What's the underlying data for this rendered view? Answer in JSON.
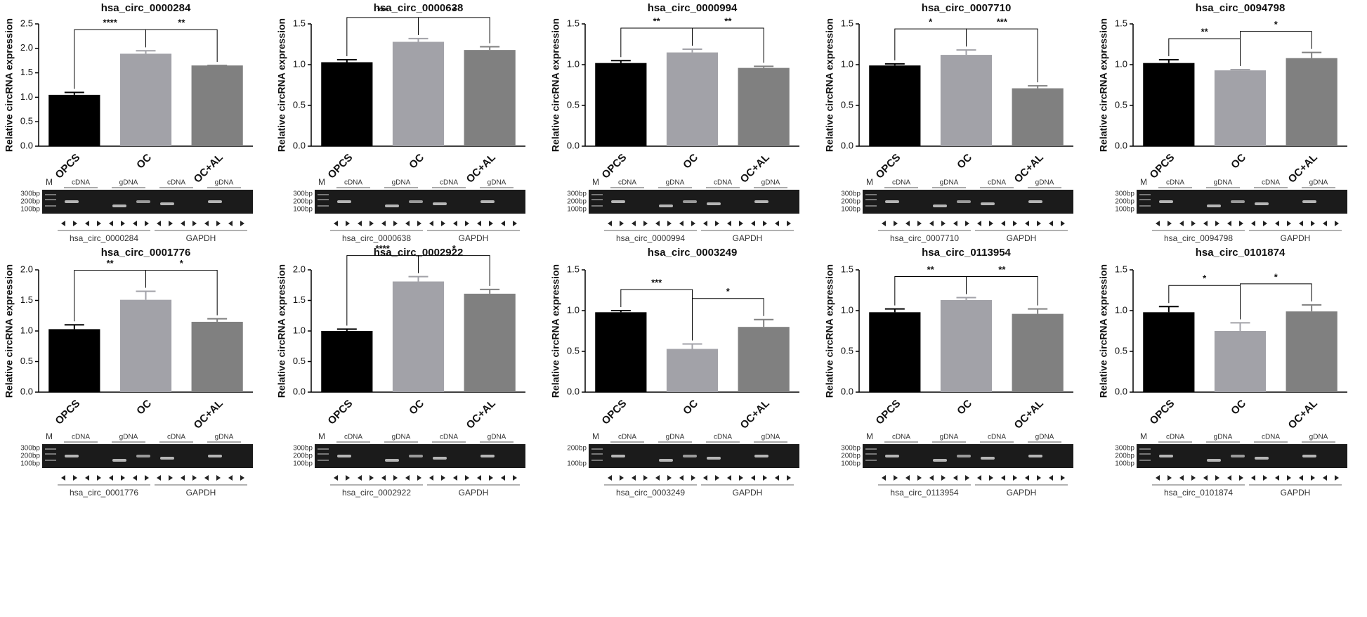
{
  "chart_data": [
    {
      "type": "bar",
      "title": "hsa_circ_0000284",
      "y_label": "Relative circRNA expression",
      "categories": [
        "OPCS",
        "OC",
        "OC+AL"
      ],
      "values": [
        1.05,
        1.89,
        1.65
      ],
      "errors": [
        0.05,
        0.06,
        0
      ],
      "colors": [
        "#000000",
        "#a2a2a8",
        "#808080"
      ],
      "ylim": [
        0,
        2.5
      ],
      "yticks": [
        {
          "value": 0,
          "label": "0.0"
        },
        0.5,
        {
          "value": 1,
          "label": "1.0"
        },
        1.5,
        {
          "value": 2,
          "label": "2.0"
        },
        2.5
      ],
      "significance": [
        "****",
        "**"
      ],
      "gel": {
        "marker": "M",
        "ladder": [
          "300bp",
          "200bp",
          "100bp"
        ],
        "lanes": [
          "cDNA",
          "gDNA",
          "cDNA",
          "gDNA"
        ],
        "groups": [
          "hsa_circ_0000284",
          "GAPDH"
        ]
      }
    },
    {
      "type": "bar",
      "title": "hsa_circ_0000638",
      "y_label": "Relative circRNA expression",
      "categories": [
        "OPCS",
        "OC",
        "OC+AL"
      ],
      "values": [
        1.03,
        1.28,
        1.18
      ],
      "errors": [
        0.03,
        0.04,
        0.04
      ],
      "colors": [
        "#000000",
        "#a2a2a8",
        "#808080"
      ],
      "ylim": [
        0,
        1.5
      ],
      "yticks": [
        {
          "value": 0,
          "label": "0.0"
        },
        0.5,
        {
          "value": 1,
          "label": "1.0"
        },
        1.5
      ],
      "significance": [
        "***",
        "*"
      ],
      "gel": {
        "marker": "M",
        "ladder": [
          "300bp",
          "200bp",
          "100bp"
        ],
        "lanes": [
          "cDNA",
          "gDNA",
          "cDNA",
          "gDNA"
        ],
        "groups": [
          "hsa_circ_0000638",
          "GAPDH"
        ]
      }
    },
    {
      "type": "bar",
      "title": "hsa_circ_0000994",
      "y_label": "Relative circRNA expression",
      "categories": [
        "OPCS",
        "OC",
        "OC+AL"
      ],
      "values": [
        1.02,
        1.15,
        0.96
      ],
      "errors": [
        0.03,
        0.04,
        0.02
      ],
      "colors": [
        "#000000",
        "#a2a2a8",
        "#808080"
      ],
      "ylim": [
        0,
        1.5
      ],
      "yticks": [
        {
          "value": 0,
          "label": "0.0"
        },
        0.5,
        {
          "value": 1,
          "label": "1.0"
        },
        1.5
      ],
      "significance": [
        "**",
        "**"
      ],
      "gel": {
        "marker": "M",
        "ladder": [
          "300bp",
          "200bp",
          "100bp"
        ],
        "lanes": [
          "cDNA",
          "gDNA",
          "cDNA",
          "gDNA"
        ],
        "groups": [
          "hsa_circ_0000994",
          "GAPDH"
        ]
      }
    },
    {
      "type": "bar",
      "title": "hsa_circ_0007710",
      "y_label": "Relative circRNA expression",
      "categories": [
        "OPCS",
        "OC",
        "OC+AL"
      ],
      "values": [
        0.99,
        1.12,
        0.71
      ],
      "errors": [
        0.02,
        0.06,
        0.03
      ],
      "colors": [
        "#000000",
        "#a2a2a8",
        "#808080"
      ],
      "ylim": [
        0,
        1.5
      ],
      "yticks": [
        {
          "value": 0,
          "label": "0.0"
        },
        0.5,
        {
          "value": 1,
          "label": "1.0"
        },
        1.5
      ],
      "significance": [
        "*",
        "***"
      ],
      "gel": {
        "marker": "M",
        "ladder": [
          "300bp",
          "200bp",
          "100bp"
        ],
        "lanes": [
          "cDNA",
          "gDNA",
          "cDNA",
          "gDNA"
        ],
        "groups": [
          "hsa_circ_0007710",
          "GAPDH"
        ]
      }
    },
    {
      "type": "bar",
      "title": "hsa_circ_0094798",
      "y_label": "Relative circRNA expression",
      "categories": [
        "OPCS",
        "OC",
        "OC+AL"
      ],
      "values": [
        1.02,
        0.93,
        1.08
      ],
      "errors": [
        0.04,
        0.01,
        0.07
      ],
      "colors": [
        "#000000",
        "#a2a2a8",
        "#808080"
      ],
      "ylim": [
        0,
        1.5
      ],
      "yticks": [
        {
          "value": 0,
          "label": "0.0"
        },
        0.5,
        {
          "value": 1,
          "label": "1.0"
        },
        1.5
      ],
      "significance": [
        "**",
        "*"
      ],
      "gel": {
        "marker": "M",
        "ladder": [
          "300bp",
          "200bp",
          "100bp"
        ],
        "lanes": [
          "cDNA",
          "gDNA",
          "cDNA",
          "gDNA"
        ],
        "groups": [
          "hsa_circ_0094798",
          "GAPDH"
        ]
      }
    },
    {
      "type": "bar",
      "title": "hsa_circ_0001776",
      "y_label": "Relative circRNA expression",
      "categories": [
        "OPCS",
        "OC",
        "OC+AL"
      ],
      "values": [
        1.03,
        1.51,
        1.15
      ],
      "errors": [
        0.07,
        0.14,
        0.05
      ],
      "colors": [
        "#000000",
        "#a2a2a8",
        "#808080"
      ],
      "ylim": [
        0,
        2
      ],
      "yticks": [
        {
          "value": 0,
          "label": "0.0"
        },
        0.5,
        {
          "value": 1,
          "label": "1.0"
        },
        1.5,
        {
          "value": 2,
          "label": "2.0"
        }
      ],
      "significance": [
        "**",
        "*"
      ],
      "gel": {
        "marker": "M",
        "ladder": [
          "300bp",
          "200bp",
          "100bp"
        ],
        "lanes": [
          "cDNA",
          "gDNA",
          "cDNA",
          "gDNA"
        ],
        "groups": [
          "hsa_circ_0001776",
          "GAPDH"
        ]
      }
    },
    {
      "type": "bar",
      "title": "hsa_circ_0002922",
      "y_label": "Relative circRNA expression",
      "categories": [
        "OPCS",
        "OC",
        "OC+AL"
      ],
      "values": [
        1.0,
        1.81,
        1.61
      ],
      "errors": [
        0.03,
        0.08,
        0.07
      ],
      "colors": [
        "#000000",
        "#a2a2a8",
        "#808080"
      ],
      "ylim": [
        0,
        2
      ],
      "yticks": [
        {
          "value": 0,
          "label": "0.0"
        },
        0.5,
        {
          "value": 1,
          "label": "1.0"
        },
        1.5,
        {
          "value": 2,
          "label": "2.0"
        }
      ],
      "significance": [
        "****",
        "*"
      ],
      "gel": {
        "marker": "M",
        "ladder": [
          "300bp",
          "200bp",
          "100bp"
        ],
        "lanes": [
          "cDNA",
          "gDNA",
          "cDNA",
          "gDNA"
        ],
        "groups": [
          "hsa_circ_0002922",
          "GAPDH"
        ]
      }
    },
    {
      "type": "bar",
      "title": "hsa_circ_0003249",
      "y_label": "Relative circRNA expression",
      "categories": [
        "OPCS",
        "OC",
        "OC+AL"
      ],
      "values": [
        0.98,
        0.53,
        0.8
      ],
      "errors": [
        0.02,
        0.06,
        0.09
      ],
      "colors": [
        "#000000",
        "#a2a2a8",
        "#808080"
      ],
      "ylim": [
        0,
        1.5
      ],
      "yticks": [
        {
          "value": 0,
          "label": "0.0"
        },
        0.5,
        {
          "value": 1,
          "label": "1.0"
        },
        1.5
      ],
      "significance": [
        "***",
        "*"
      ],
      "gel": {
        "marker": "M",
        "ladder": [
          "200bp",
          "100bp"
        ],
        "lanes": [
          "cDNA",
          "gDNA",
          "cDNA",
          "gDNA"
        ],
        "groups": [
          "hsa_circ_0003249",
          "GAPDH"
        ]
      }
    },
    {
      "type": "bar",
      "title": "hsa_circ_0113954",
      "y_label": "Relative circRNA expression",
      "categories": [
        "OPCS",
        "OC",
        "OC+AL"
      ],
      "values": [
        0.98,
        1.13,
        0.96
      ],
      "errors": [
        0.04,
        0.03,
        0.06
      ],
      "colors": [
        "#000000",
        "#a2a2a8",
        "#808080"
      ],
      "ylim": [
        0,
        1.5
      ],
      "yticks": [
        {
          "value": 0,
          "label": "0.0"
        },
        0.5,
        {
          "value": 1,
          "label": "1.0"
        },
        1.5
      ],
      "significance": [
        "**",
        "**"
      ],
      "gel": {
        "marker": "M",
        "ladder": [
          "300bp",
          "200bp",
          "100bp"
        ],
        "lanes": [
          "cDNA",
          "gDNA",
          "cDNA",
          "gDNA"
        ],
        "groups": [
          "hsa_circ_0113954",
          "GAPDH"
        ]
      }
    },
    {
      "type": "bar",
      "title": "hsa_circ_0101874",
      "y_label": "Relative circRNA expression",
      "categories": [
        "OPCS",
        "OC",
        "OC+AL"
      ],
      "values": [
        0.98,
        0.75,
        0.99
      ],
      "errors": [
        0.07,
        0.1,
        0.08
      ],
      "colors": [
        "#000000",
        "#a2a2a8",
        "#808080"
      ],
      "ylim": [
        0,
        1.5
      ],
      "yticks": [
        {
          "value": 0,
          "label": "0.0"
        },
        0.5,
        {
          "value": 1,
          "label": "1.0"
        },
        1.5
      ],
      "significance": [
        "*",
        "*"
      ],
      "gel": {
        "marker": "M",
        "ladder": [
          "300bp",
          "200bp",
          "100bp"
        ],
        "lanes": [
          "cDNA",
          "gDNA",
          "cDNA",
          "gDNA"
        ],
        "groups": [
          "hsa_circ_0101874",
          "GAPDH"
        ]
      }
    }
  ]
}
